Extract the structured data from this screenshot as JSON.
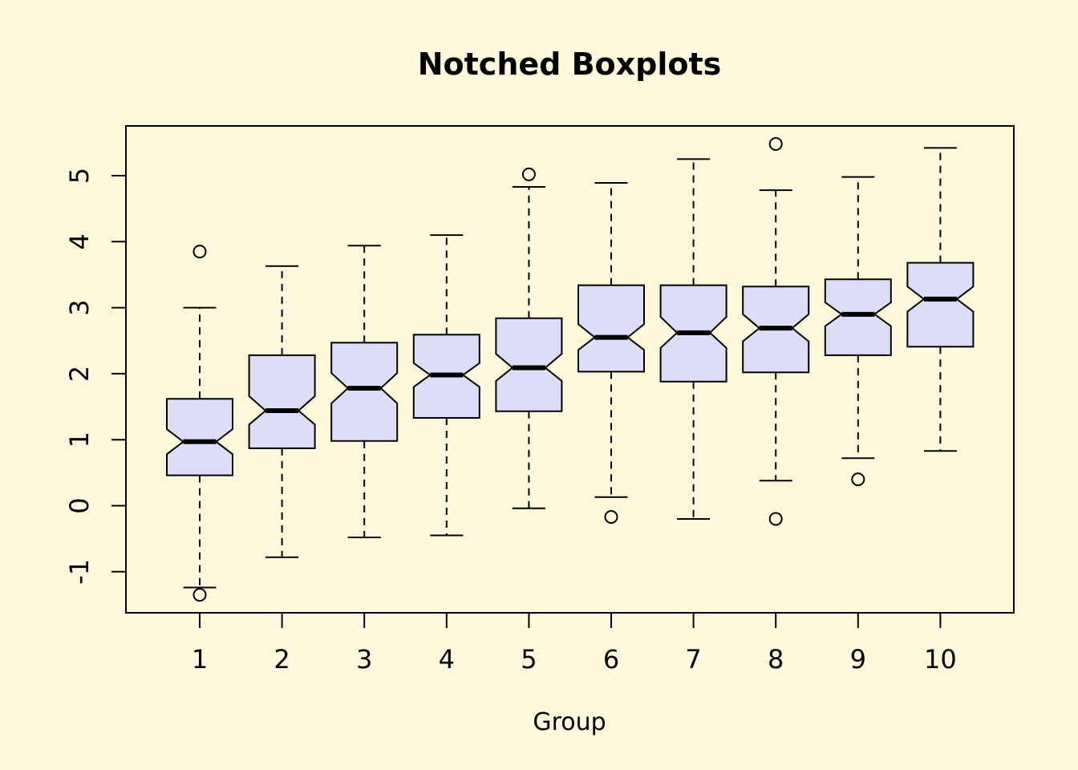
{
  "chart_data": {
    "type": "boxplot",
    "title": "Notched Boxplots",
    "xlabel": "Group",
    "ylabel": "",
    "ylim": [
      -1.6,
      5.8
    ],
    "yticks": [
      "-1",
      "0",
      "1",
      "2",
      "3",
      "4",
      "5"
    ],
    "categories": [
      "1",
      "2",
      "3",
      "4",
      "5",
      "6",
      "7",
      "8",
      "9",
      "10"
    ],
    "notched": true,
    "box_fill": "#DDDDF8",
    "background": "#FFF8DC",
    "boxes": [
      {
        "category": "1",
        "whisker_low": -1.24,
        "q1": 0.46,
        "median": 0.97,
        "notch_low": 0.78,
        "notch_high": 1.16,
        "q3": 1.62,
        "whisker_high": 3.0,
        "outliers": [
          3.85,
          -1.35
        ]
      },
      {
        "category": "2",
        "whisker_low": -0.78,
        "q1": 0.87,
        "median": 1.44,
        "notch_low": 1.23,
        "notch_high": 1.66,
        "q3": 2.28,
        "whisker_high": 3.63,
        "outliers": []
      },
      {
        "category": "3",
        "whisker_low": -0.48,
        "q1": 0.98,
        "median": 1.78,
        "notch_low": 1.55,
        "notch_high": 2.01,
        "q3": 2.47,
        "whisker_high": 3.94,
        "outliers": []
      },
      {
        "category": "4",
        "whisker_low": -0.45,
        "q1": 1.33,
        "median": 1.98,
        "notch_low": 1.8,
        "notch_high": 2.16,
        "q3": 2.59,
        "whisker_high": 4.1,
        "outliers": []
      },
      {
        "category": "5",
        "whisker_low": -0.04,
        "q1": 1.43,
        "median": 2.09,
        "notch_low": 1.89,
        "notch_high": 2.3,
        "q3": 2.84,
        "whisker_high": 4.83,
        "outliers": [
          5.02
        ]
      },
      {
        "category": "6",
        "whisker_low": 0.13,
        "q1": 2.03,
        "median": 2.55,
        "notch_low": 2.36,
        "notch_high": 2.75,
        "q3": 3.34,
        "whisker_high": 4.89,
        "outliers": [
          -0.17
        ]
      },
      {
        "category": "7",
        "whisker_low": -0.2,
        "q1": 1.88,
        "median": 2.62,
        "notch_low": 2.39,
        "notch_high": 2.86,
        "q3": 3.34,
        "whisker_high": 5.25,
        "outliers": []
      },
      {
        "category": "8",
        "whisker_low": 0.38,
        "q1": 2.02,
        "median": 2.69,
        "notch_low": 2.49,
        "notch_high": 2.9,
        "q3": 3.32,
        "whisker_high": 4.78,
        "outliers": [
          5.48,
          -0.2
        ]
      },
      {
        "category": "9",
        "whisker_low": 0.72,
        "q1": 2.28,
        "median": 2.9,
        "notch_low": 2.72,
        "notch_high": 3.08,
        "q3": 3.43,
        "whisker_high": 4.98,
        "outliers": [
          0.4
        ]
      },
      {
        "category": "10",
        "whisker_low": 0.83,
        "q1": 2.41,
        "median": 3.13,
        "notch_low": 2.94,
        "notch_high": 3.32,
        "q3": 3.68,
        "whisker_high": 5.42,
        "outliers": []
      }
    ]
  }
}
